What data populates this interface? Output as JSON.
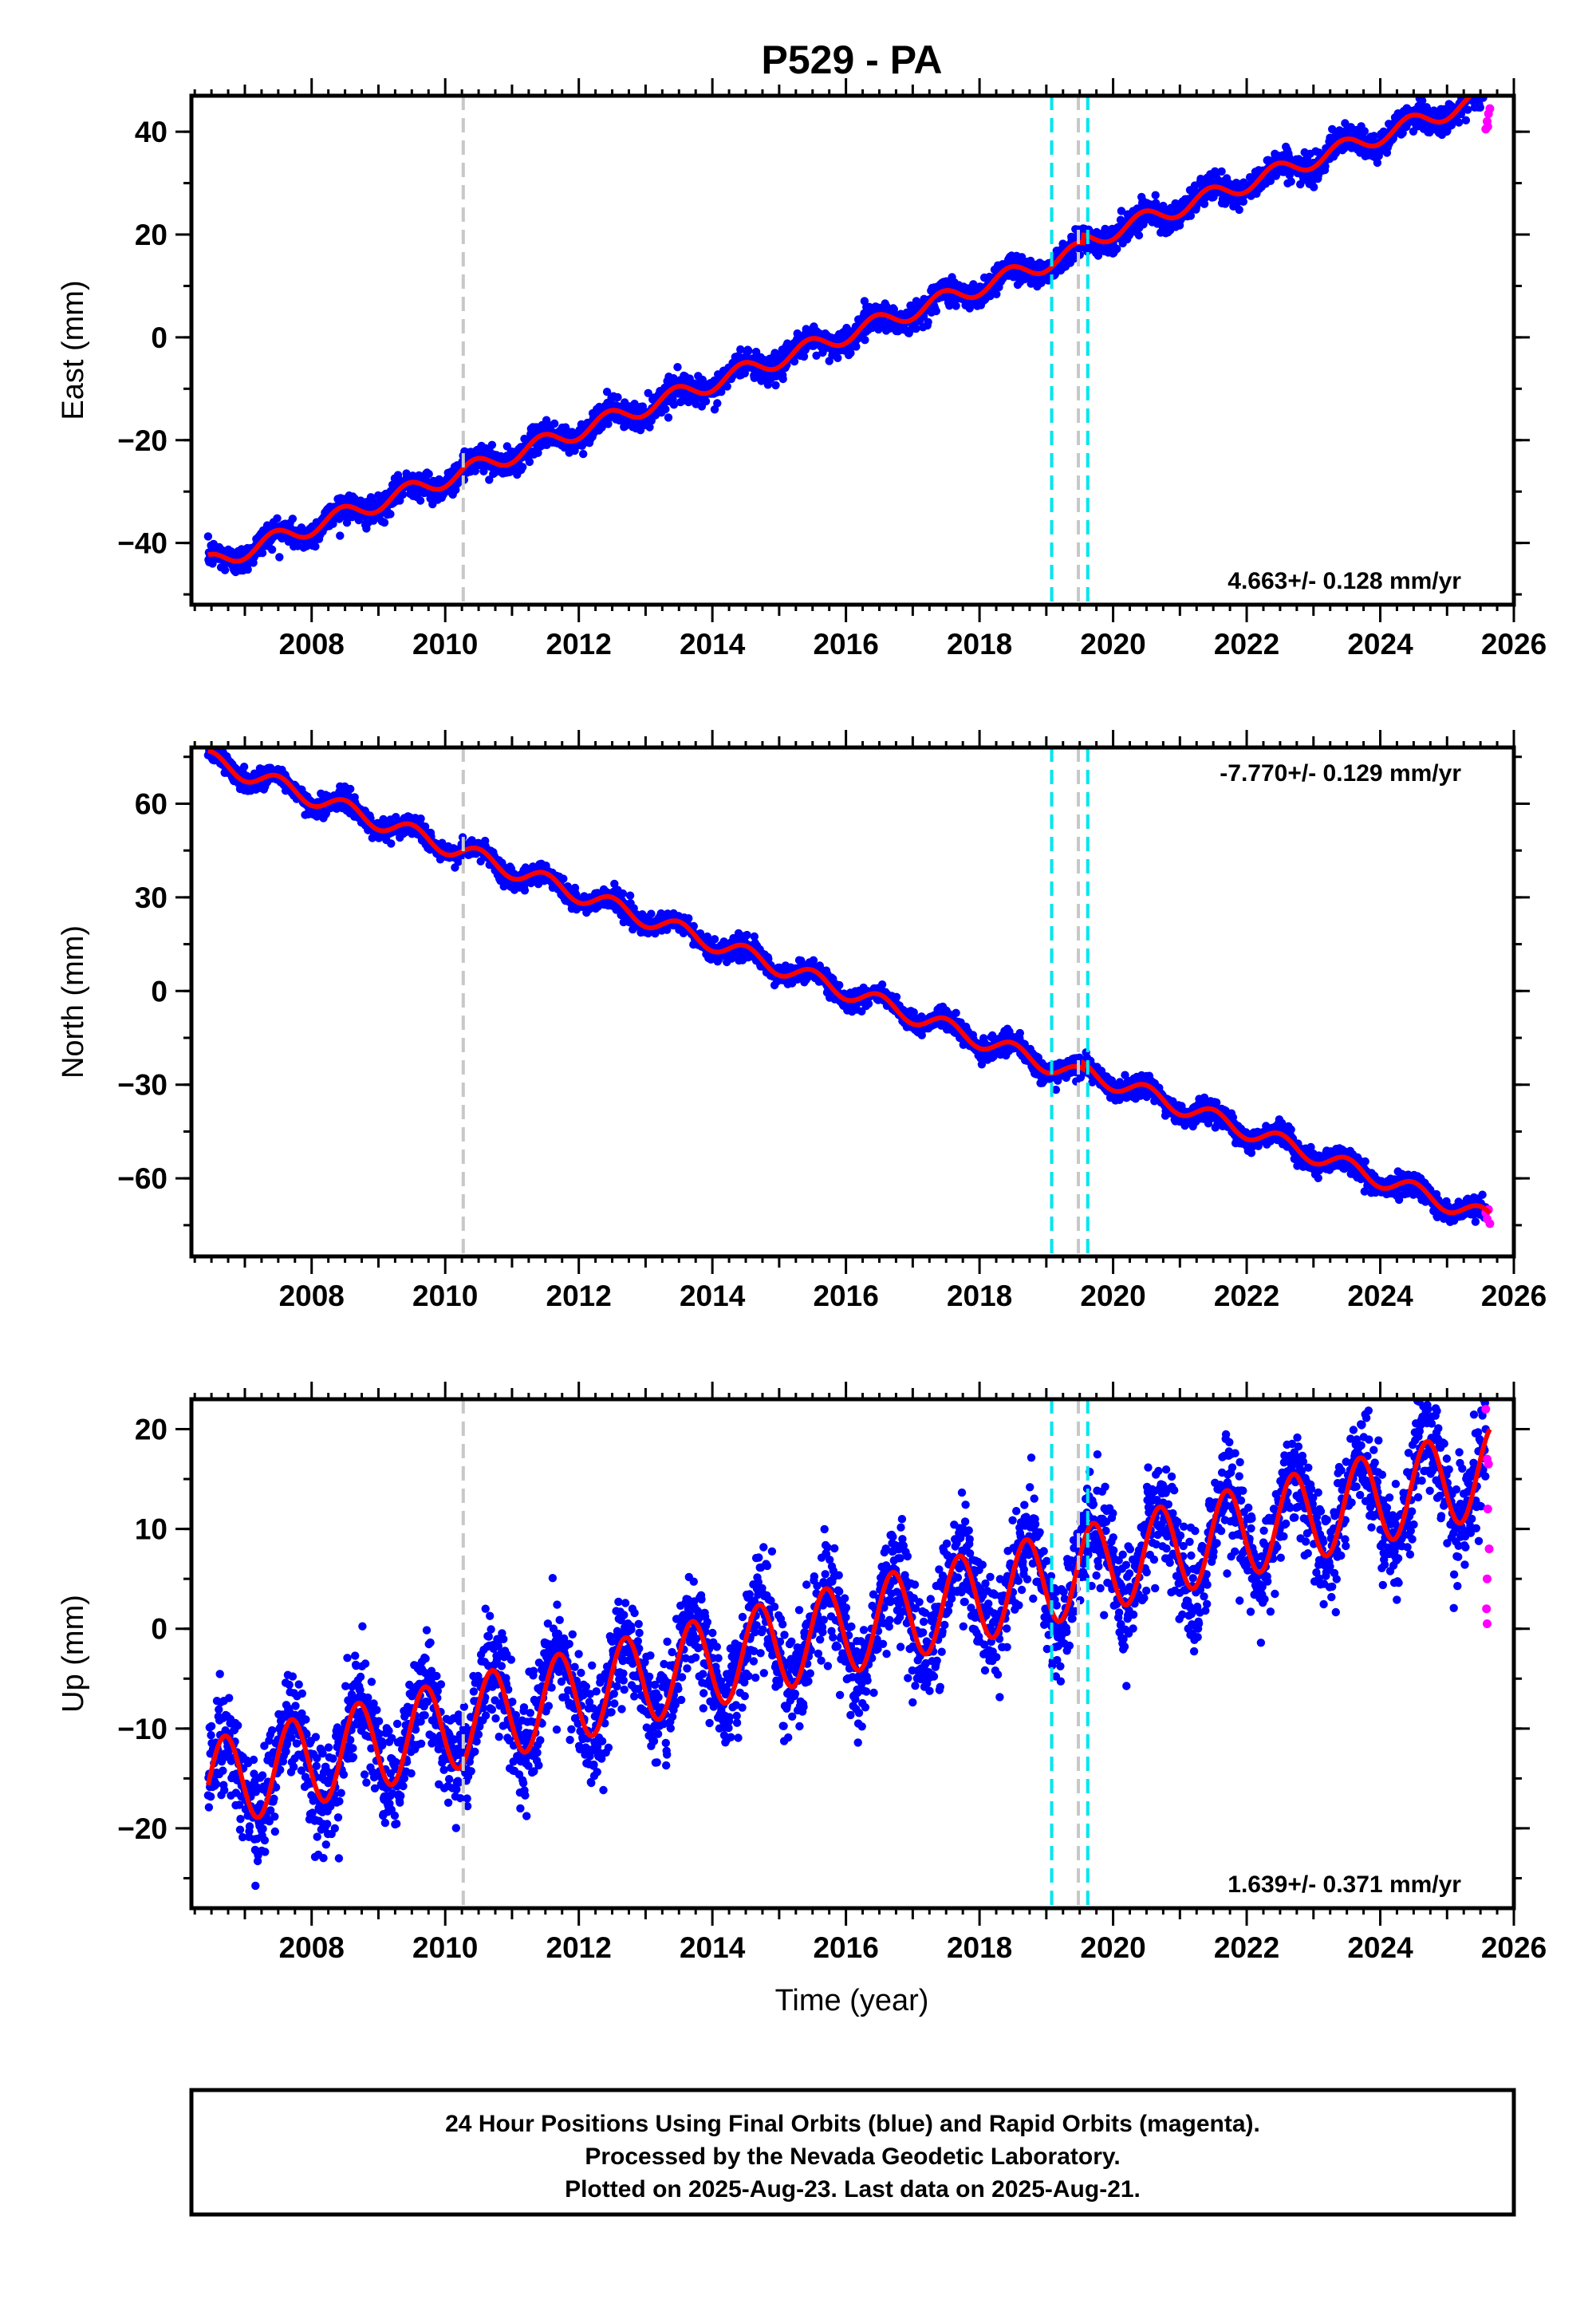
{
  "chart_data": {
    "type": "scatter",
    "title": "P529 - PA",
    "x_axis": {
      "label": "Time (year)",
      "range": [
        2006.2,
        2026.0
      ],
      "ticks": [
        2008,
        2010,
        2012,
        2014,
        2016,
        2018,
        2020,
        2022,
        2024,
        2026
      ],
      "tick_labels": [
        "2008",
        "2010",
        "2012",
        "2014",
        "2016",
        "2018",
        "2020",
        "2022",
        "2024",
        "2026"
      ]
    },
    "legend": "",
    "colors": {
      "final_orbits": "#0000ff",
      "rapid_orbits": "#ff00ff",
      "model": "#ff0000",
      "event_gray": "#c8c8c8",
      "event_cyan": "#00e5ee"
    },
    "panels": [
      {
        "id": "east",
        "ylabel": "East (mm)",
        "ylim": [
          -52,
          47
        ],
        "yticks": [
          -40,
          -20,
          0,
          20,
          40
        ],
        "ytick_labels": [
          "−40",
          "−20",
          "0",
          "20",
          "40"
        ],
        "rate_label": "4.663+/- 0.128 mm/yr",
        "rate_position": "bottom-right",
        "model": {
          "trend_mm_per_yr": 4.663,
          "value_at_2016": 0.5,
          "annual_amp": 1.7,
          "annual_peak": 0.45,
          "noise_sd": 1.3,
          "steps": [
            {
              "year": 2019.55,
              "offset": 1.5
            }
          ]
        },
        "rapid_points": [
          [
            2025.58,
            40.5
          ],
          [
            2025.6,
            42.0
          ],
          [
            2025.62,
            43.5
          ],
          [
            2025.64,
            44.5
          ],
          [
            2025.61,
            41.0
          ]
        ]
      },
      {
        "id": "north",
        "ylabel": "North (mm)",
        "ylim": [
          -85,
          78
        ],
        "yticks": [
          -60,
          -30,
          0,
          30,
          60
        ],
        "ytick_labels": [
          "−60",
          "−30",
          "0",
          "30",
          "60"
        ],
        "rate_label": "-7.770+/- 0.129 mm/yr",
        "rate_position": "top-right",
        "model": {
          "trend_mm_per_yr": -7.77,
          "value_at_2016": 0.0,
          "annual_amp": 2.8,
          "annual_peak": 0.5,
          "noise_sd": 1.6,
          "steps": [
            {
              "year": 2019.55,
              "offset": 2.0
            }
          ]
        },
        "rapid_points": [
          [
            2025.58,
            -71.0
          ],
          [
            2025.6,
            -73.0
          ],
          [
            2025.62,
            -70.0
          ],
          [
            2025.64,
            -74.5
          ]
        ]
      },
      {
        "id": "up",
        "ylabel": "Up (mm)",
        "ylim": [
          -28,
          23
        ],
        "yticks": [
          -20,
          -10,
          0,
          10,
          20
        ],
        "ytick_labels": [
          "−20",
          "−10",
          "0",
          "10",
          "20"
        ],
        "rate_label": "1.639+/- 0.371 mm/yr",
        "rate_position": "bottom-right",
        "model": {
          "trend_mm_per_yr": 1.639,
          "value_at_2016": 0.0,
          "annual_amp": 4.5,
          "annual_peak": 0.7,
          "noise_sd": 2.6,
          "steps": []
        },
        "rapid_points": [
          [
            2025.58,
            22.0
          ],
          [
            2025.6,
            17.0
          ],
          [
            2025.62,
            16.5
          ],
          [
            2025.61,
            12.0
          ],
          [
            2025.63,
            8.0
          ],
          [
            2025.6,
            5.0
          ],
          [
            2025.59,
            2.0
          ],
          [
            2025.6,
            0.5
          ]
        ]
      }
    ],
    "event_lines": [
      {
        "year": 2010.27,
        "color": "gray"
      },
      {
        "year": 2019.08,
        "color": "cyan"
      },
      {
        "year": 2019.48,
        "color": "gray"
      },
      {
        "year": 2019.62,
        "color": "cyan"
      }
    ],
    "data_span": [
      2006.45,
      2025.64
    ]
  },
  "footer": {
    "line1": "24 Hour Positions Using Final Orbits (blue) and Rapid Orbits (magenta).",
    "line2": "Processed by the Nevada Geodetic Laboratory.",
    "line3": "Plotted on 2025-Aug-23. Last data on 2025-Aug-21."
  }
}
